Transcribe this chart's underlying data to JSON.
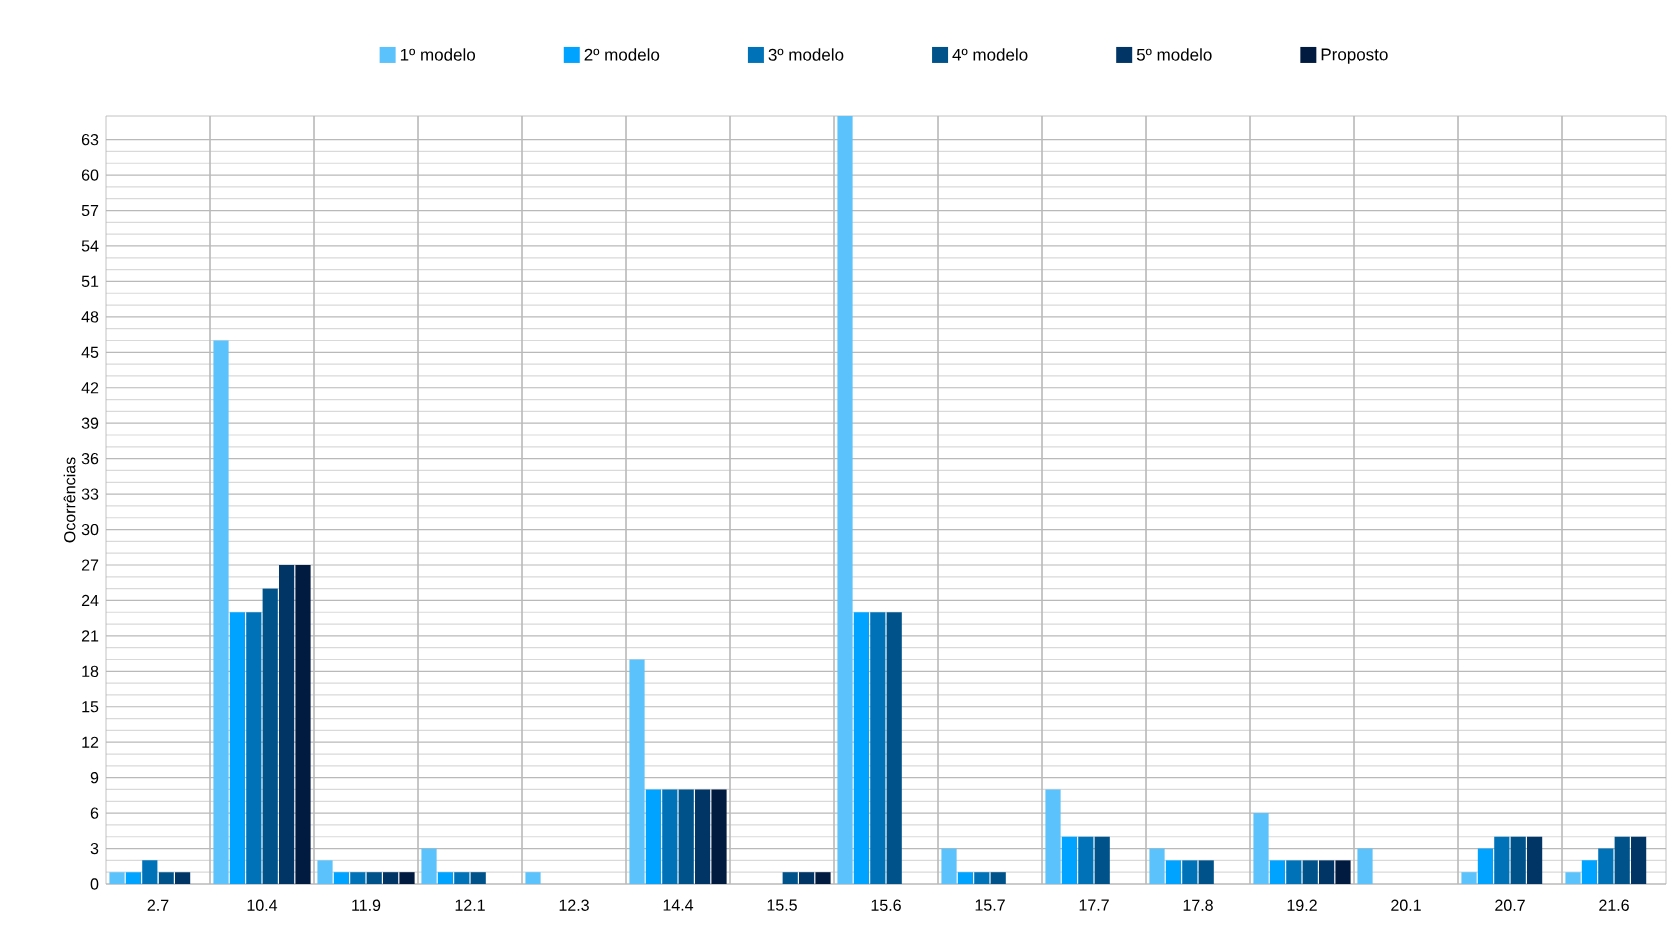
{
  "chart_data": {
    "type": "bar",
    "ylabel": "Ocorrências",
    "categories": [
      "2.7",
      "10.4",
      "11.9",
      "12.1",
      "12.3",
      "14.4",
      "15.5",
      "15.6",
      "15.7",
      "17.7",
      "17.8",
      "19.2",
      "20.1",
      "20.7",
      "21.6"
    ],
    "series": [
      {
        "name": "1º modelo",
        "color": "#5bc2fb",
        "values": [
          1,
          46,
          2,
          3,
          1,
          19,
          0,
          65,
          3,
          8,
          3,
          6,
          3,
          1,
          1
        ]
      },
      {
        "name": "2º modelo",
        "color": "#00a3ff",
        "values": [
          1,
          23,
          1,
          1,
          0,
          8,
          0,
          23,
          1,
          4,
          2,
          2,
          0,
          3,
          2
        ]
      },
      {
        "name": "3º modelo",
        "color": "#0072b8",
        "values": [
          2,
          23,
          1,
          1,
          0,
          8,
          0,
          23,
          1,
          4,
          2,
          2,
          0,
          4,
          3
        ]
      },
      {
        "name": "4º modelo",
        "color": "#00528a",
        "values": [
          1,
          25,
          1,
          1,
          0,
          8,
          1,
          23,
          1,
          4,
          2,
          2,
          0,
          4,
          4
        ]
      },
      {
        "name": "5º modelo",
        "color": "#003566",
        "values": [
          1,
          27,
          1,
          0,
          0,
          8,
          1,
          0,
          0,
          0,
          0,
          2,
          0,
          4,
          4
        ]
      },
      {
        "name": "Proposto",
        "color": "#001a40",
        "values": [
          0,
          27,
          1,
          0,
          0,
          8,
          1,
          0,
          0,
          0,
          0,
          2,
          0,
          0,
          null
        ]
      }
    ],
    "ylim": [
      0,
      65
    ],
    "yticks": [
      0,
      3,
      6,
      9,
      12,
      15,
      18,
      21,
      24,
      27,
      30,
      33,
      36,
      39,
      42,
      45,
      48,
      51,
      54,
      57,
      60,
      63
    ],
    "grid": true,
    "legend": "top"
  }
}
